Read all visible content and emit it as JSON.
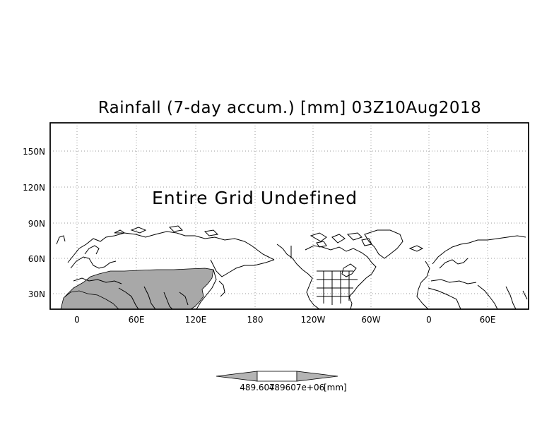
{
  "title": "Rainfall (7-day accum.) [mm] 03Z10Aug2018",
  "message": "Entire Grid Undefined",
  "lat_labels": [
    "150N",
    "120N",
    "90N",
    "60N",
    "30N"
  ],
  "lon_labels": [
    "0",
    "60E",
    "120E",
    "180",
    "120W",
    "60W",
    "0",
    "60E"
  ],
  "colorbar": {
    "min_label": "489.607",
    "max_label": "489607e+06",
    "unit_label": "[mm]",
    "fill_color": "#b4b4b4",
    "center_color": "#ffffff"
  },
  "colors": {
    "land_shade": "#a8a8a8",
    "coast": "#000000",
    "grid": "#9a9a9a"
  }
}
